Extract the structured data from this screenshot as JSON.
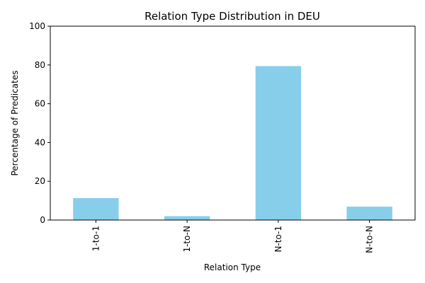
{
  "chart_data": {
    "type": "bar",
    "title": "Relation Type Distribution in DEU",
    "xlabel": "Relation Type",
    "ylabel": "Percentage of Predicates",
    "categories": [
      "1-to-1",
      "1-to-N",
      "N-to-1",
      "N-to-N"
    ],
    "values": [
      11.3,
      2.0,
      79.4,
      6.9
    ],
    "ylim": [
      0,
      100
    ],
    "yticks": [
      0,
      20,
      40,
      60,
      80,
      100
    ],
    "bar_color": "#87ceeb",
    "grid": false,
    "legend": "none"
  }
}
